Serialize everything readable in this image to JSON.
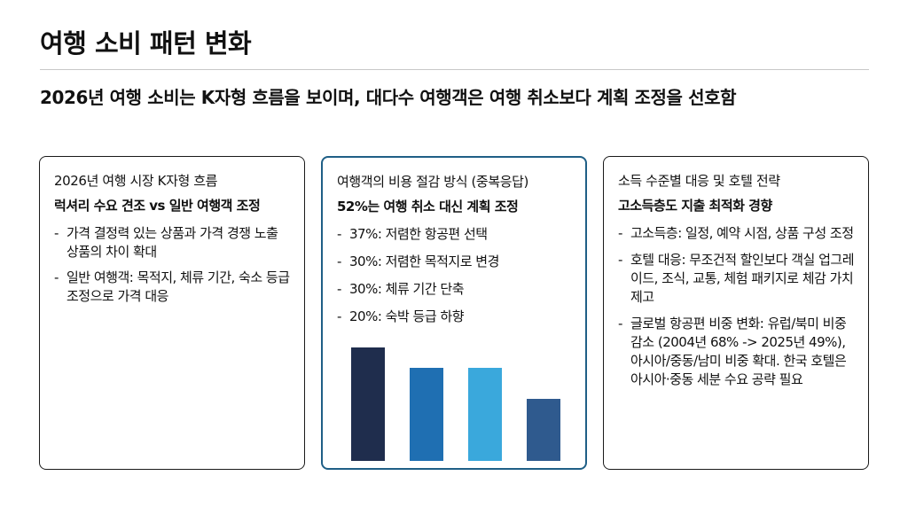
{
  "title": "여행 소비 패턴 변화",
  "subtitle": "2026년 여행 소비는 K자형 흐름을 보이며, 대다수 여행객은 여행 취소보다 계획 조정을 선호함",
  "cards": [
    {
      "heading": "2026년 여행 시장 K자형 흐름",
      "subheading": "럭셔리 수요 견조 vs 일반 여행객 조정",
      "bullets": [
        "가격 결정력 있는 상품과 가격 경쟁 노출 상품의 차이 확대",
        "일반 여행객: 목적지, 체류 기간, 숙소 등급 조정으로 가격 대응"
      ]
    },
    {
      "heading": "여행객의 비용 절감 방식 (중복응답)",
      "subheading": "52%는 여행 취소 대신 계획 조정",
      "bullets": [
        "37%: 저렴한 항공편 선택",
        "30%: 저렴한 목적지로 변경",
        "30%: 체류 기간 단축",
        "20%: 숙박 등급 하향"
      ]
    },
    {
      "heading": "소득 수준별 대응 및 호텔 전략",
      "subheading": "고소득층도 지출 최적화 경향",
      "bullets": [
        "고소득층: 일정, 예약 시점, 상품 구성 조정",
        "호텔 대응: 무조건적 할인보다 객실 업그레이드, 조식, 교통, 체험 패키지로  체감 가치 제고",
        "글로벌 항공편 비중 변화: 유럽/북미 비중 감소 (2004년 68% -> 2025년 49%), 아시아/중동/남미 비중 확대. 한국 호텔은 아시아·중동 세분 수요 공략 필요"
      ]
    }
  ],
  "chart_data": {
    "type": "bar",
    "categories": [
      "저렴한 항공편 선택",
      "저렴한 목적지로 변경",
      "체류 기간 단축",
      "숙박 등급 하향"
    ],
    "values": [
      37,
      30,
      30,
      20
    ],
    "colors": [
      "#1f2d4d",
      "#1f6fb2",
      "#3aa8dc",
      "#2f5a8e"
    ],
    "ylim": [
      0,
      40
    ],
    "title": "",
    "xlabel": "",
    "ylabel": ""
  }
}
